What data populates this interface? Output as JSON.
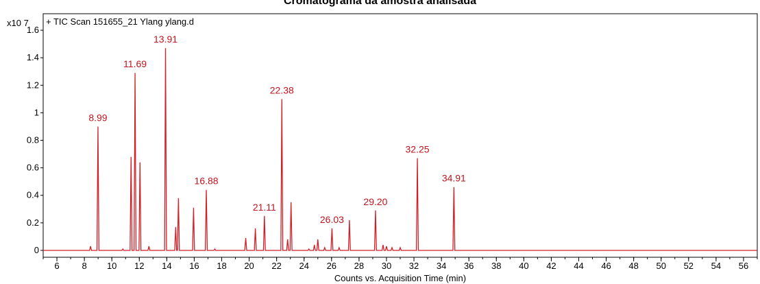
{
  "chart_data": {
    "type": "line",
    "title": "Cromatograma da amostra analisada",
    "legend_label": "+ TIC Scan 151655_21 Ylang ylang.d",
    "y_multiplier": "x10 7",
    "xlabel": "Counts vs. Acquisition Time (min)",
    "ylabel": "",
    "xlim": [
      5,
      57
    ],
    "ylim": [
      -0.05,
      1.72
    ],
    "x_ticks": [
      6,
      8,
      10,
      12,
      14,
      16,
      18,
      20,
      22,
      24,
      26,
      28,
      30,
      32,
      34,
      36,
      38,
      40,
      42,
      44,
      46,
      48,
      50,
      52,
      54,
      56
    ],
    "y_ticks": [
      {
        "value": 0,
        "label": "0"
      },
      {
        "value": 0.2,
        "label": "0.2"
      },
      {
        "value": 0.4,
        "label": "0.4"
      },
      {
        "value": 0.6,
        "label": "0.6"
      },
      {
        "value": 0.8,
        "label": "0.8"
      },
      {
        "value": 1.0,
        "label": "1"
      },
      {
        "value": 1.2,
        "label": "1.2"
      },
      {
        "value": 1.4,
        "label": "1.4"
      },
      {
        "value": 1.6,
        "label": "1.6"
      }
    ],
    "grid": false,
    "line_color": "#d21e26",
    "label_color": "#c0141e",
    "peaks": [
      {
        "x": 8.45,
        "y": 0.03
      },
      {
        "x": 8.99,
        "y": 0.9
      },
      {
        "x": 10.8,
        "y": 0.01
      },
      {
        "x": 11.4,
        "y": 0.68
      },
      {
        "x": 11.69,
        "y": 1.29
      },
      {
        "x": 12.05,
        "y": 0.64
      },
      {
        "x": 12.7,
        "y": 0.03
      },
      {
        "x": 13.91,
        "y": 1.47
      },
      {
        "x": 14.65,
        "y": 0.17
      },
      {
        "x": 14.85,
        "y": 0.38
      },
      {
        "x": 15.95,
        "y": 0.31
      },
      {
        "x": 16.88,
        "y": 0.44
      },
      {
        "x": 17.5,
        "y": 0.01
      },
      {
        "x": 19.75,
        "y": 0.09
      },
      {
        "x": 20.45,
        "y": 0.16
      },
      {
        "x": 21.11,
        "y": 0.25
      },
      {
        "x": 22.38,
        "y": 1.1
      },
      {
        "x": 22.8,
        "y": 0.08
      },
      {
        "x": 23.05,
        "y": 0.35
      },
      {
        "x": 24.35,
        "y": 0.01
      },
      {
        "x": 24.75,
        "y": 0.04
      },
      {
        "x": 25.0,
        "y": 0.08
      },
      {
        "x": 25.5,
        "y": 0.02
      },
      {
        "x": 26.03,
        "y": 0.16
      },
      {
        "x": 26.55,
        "y": 0.02
      },
      {
        "x": 27.3,
        "y": 0.22
      },
      {
        "x": 29.2,
        "y": 0.29
      },
      {
        "x": 29.75,
        "y": 0.04
      },
      {
        "x": 30.0,
        "y": 0.03
      },
      {
        "x": 30.4,
        "y": 0.02
      },
      {
        "x": 31.0,
        "y": 0.02
      },
      {
        "x": 32.25,
        "y": 0.67
      },
      {
        "x": 34.91,
        "y": 0.46
      }
    ],
    "peak_labels": [
      {
        "x": 8.99,
        "y": 0.9,
        "text": "8.99"
      },
      {
        "x": 11.69,
        "y": 1.29,
        "text": "11.69"
      },
      {
        "x": 13.91,
        "y": 1.47,
        "text": "13.91"
      },
      {
        "x": 16.88,
        "y": 0.44,
        "text": "16.88"
      },
      {
        "x": 21.11,
        "y": 0.25,
        "text": "21.11"
      },
      {
        "x": 22.38,
        "y": 1.1,
        "text": "22.38"
      },
      {
        "x": 26.03,
        "y": 0.16,
        "text": "26.03"
      },
      {
        "x": 29.2,
        "y": 0.29,
        "text": "29.20"
      },
      {
        "x": 32.25,
        "y": 0.67,
        "text": "32.25"
      },
      {
        "x": 34.91,
        "y": 0.46,
        "text": "34.91"
      }
    ]
  }
}
